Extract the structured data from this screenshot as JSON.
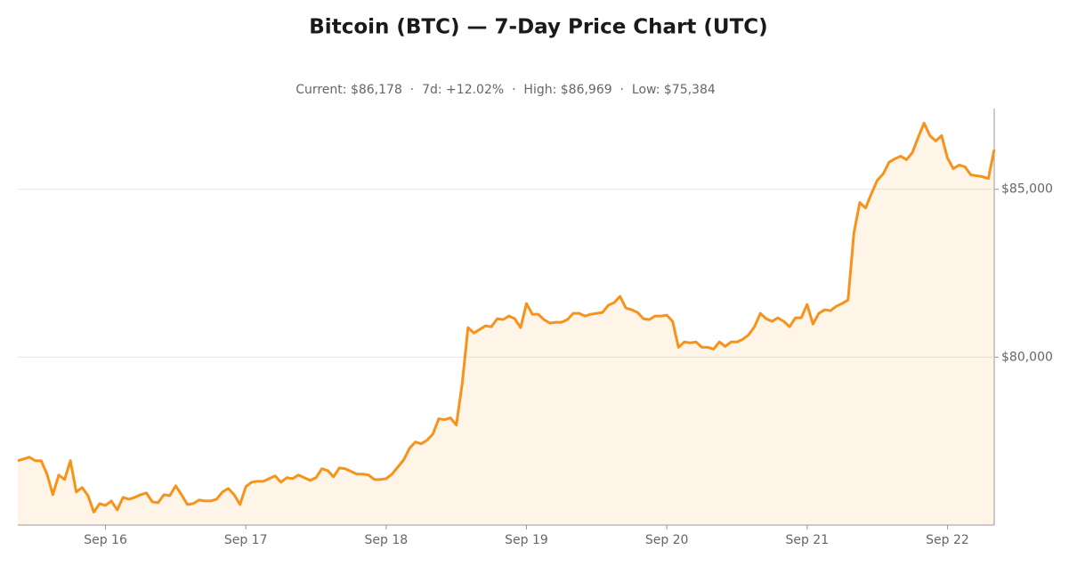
{
  "chart_data": {
    "type": "line",
    "title": "Bitcoin (BTC) — 7-Day Price Chart (UTC)",
    "subtitle": "Current: $86,178  ·  7d: +12.02%  ·  High: $86,969  ·  Low: $75,384",
    "color": "#f7931a",
    "ylim": [
      75000,
      87400
    ],
    "yticks": [
      {
        "value": 80000,
        "label": "$80,000"
      },
      {
        "value": 85000,
        "label": "$85,000"
      }
    ],
    "grid": true,
    "categories": [
      null,
      null,
      null,
      null,
      null,
      null,
      null,
      null,
      null,
      null,
      null,
      null,
      null,
      null,
      null,
      "Sep 16",
      null,
      null,
      null,
      null,
      null,
      null,
      null,
      null,
      null,
      null,
      null,
      null,
      null,
      null,
      null,
      null,
      null,
      null,
      null,
      null,
      null,
      null,
      null,
      "Sep 17",
      null,
      null,
      null,
      null,
      null,
      null,
      null,
      null,
      null,
      null,
      null,
      null,
      null,
      null,
      null,
      null,
      null,
      null,
      null,
      null,
      null,
      null,
      null,
      "Sep 18",
      null,
      null,
      null,
      null,
      null,
      null,
      null,
      null,
      null,
      null,
      null,
      null,
      null,
      null,
      null,
      null,
      null,
      null,
      null,
      null,
      null,
      null,
      null,
      "Sep 19",
      null,
      null,
      null,
      null,
      null,
      null,
      null,
      null,
      null,
      null,
      null,
      null,
      null,
      null,
      null,
      null,
      null,
      null,
      null,
      null,
      null,
      null,
      null,
      "Sep 20",
      null,
      null,
      null,
      null,
      null,
      null,
      null,
      null,
      null,
      null,
      null,
      null,
      null,
      null,
      null,
      null,
      null,
      null,
      null,
      null,
      null,
      null,
      null,
      "Sep 21",
      null,
      null,
      null,
      null,
      null,
      null,
      null,
      null,
      null,
      null,
      null,
      null,
      null,
      null,
      null,
      null,
      null,
      null,
      null,
      null,
      null,
      null,
      null,
      "Sep 22",
      null,
      null,
      null,
      null,
      null,
      null,
      null,
      null
    ],
    "values": [
      76915,
      76968,
      77021,
      76915,
      76915,
      76516,
      75904,
      76490,
      76356,
      76915,
      75984,
      76117,
      75878,
      75384,
      75638,
      75585,
      75718,
      75452,
      75824,
      75771,
      75824,
      75904,
      75957,
      75691,
      75665,
      75904,
      75878,
      76170,
      75904,
      75612,
      75638,
      75745,
      75718,
      75718,
      75771,
      75984,
      76090,
      75904,
      75612,
      76144,
      76277,
      76303,
      76303,
      76383,
      76463,
      76277,
      76410,
      76383,
      76490,
      76410,
      76330,
      76410,
      76676,
      76622,
      76436,
      76702,
      76676,
      76596,
      76516,
      76516,
      76490,
      76356,
      76356,
      76383,
      76516,
      76729,
      76941,
      77287,
      77473,
      77420,
      77527,
      77713,
      78165,
      78138,
      78191,
      77979,
      79200,
      80880,
      80718,
      80824,
      80931,
      80904,
      81144,
      81117,
      81223,
      81144,
      80878,
      81596,
      81277,
      81277,
      81117,
      81011,
      81037,
      81037,
      81117,
      81303,
      81303,
      81223,
      81277,
      81303,
      81330,
      81543,
      81622,
      81809,
      81463,
      81410,
      81330,
      81144,
      81117,
      81223,
      81223,
      81250,
      81064,
      80293,
      80452,
      80425,
      80452,
      80293,
      80293,
      80239,
      80452,
      80319,
      80452,
      80452,
      80532,
      80665,
      80904,
      81303,
      81144,
      81064,
      81170,
      81064,
      80904,
      81170,
      81170,
      81569,
      80984,
      81303,
      81410,
      81383,
      81516,
      81596,
      81702,
      83697,
      84601,
      84441,
      84867,
      85266,
      85452,
      85798,
      85904,
      85984,
      85878,
      86090,
      86543,
      86969,
      86596,
      86436,
      86596,
      85931,
      85612,
      85718,
      85665,
      85426,
      85399,
      85372,
      85319,
      86178
    ]
  }
}
